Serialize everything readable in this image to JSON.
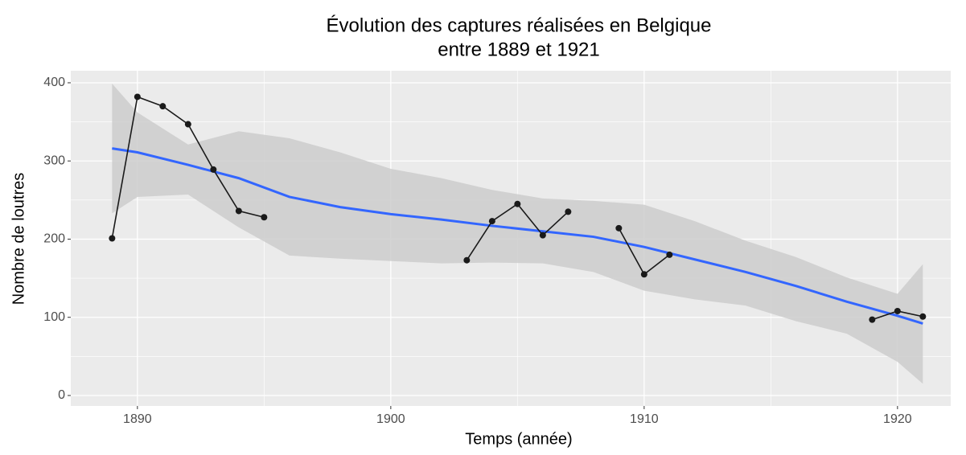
{
  "chart_data": {
    "type": "line",
    "title": [
      "Évolution des captures réalisées en Belgique",
      "entre 1889 et 1921"
    ],
    "xlabel": "Temps (année)",
    "ylabel": "Nombre de loutres",
    "x": [
      1889,
      1890,
      1891,
      1892,
      1893,
      1894,
      1895,
      1896,
      1897,
      1898,
      1899,
      1900,
      1901,
      1902,
      1903,
      1904,
      1905,
      1906,
      1907,
      1908,
      1909,
      1910,
      1911,
      1912,
      1913,
      1914,
      1915,
      1916,
      1917,
      1918,
      1919,
      1920,
      1921
    ],
    "values": [
      201,
      382,
      370,
      347,
      289,
      236,
      228,
      null,
      null,
      null,
      null,
      null,
      null,
      null,
      173,
      223,
      245,
      205,
      235,
      null,
      214,
      155,
      180,
      null,
      null,
      null,
      null,
      null,
      null,
      null,
      97,
      108,
      101
    ],
    "color": "#1a1a1a",
    "smooth": {
      "color": "#3366ff",
      "band_color": "#cccccc",
      "x": [
        1889,
        1890,
        1892,
        1894,
        1896,
        1898,
        1900,
        1902,
        1904,
        1906,
        1908,
        1910,
        1912,
        1914,
        1916,
        1918,
        1920,
        1921
      ],
      "values": [
        316,
        311,
        295,
        278,
        254,
        241,
        232,
        225,
        217,
        210,
        203,
        190,
        174,
        158,
        140,
        120,
        102,
        92
      ],
      "lower": [
        233,
        254,
        257,
        215,
        179,
        175,
        172,
        169,
        170,
        169,
        158,
        134,
        123,
        115,
        95,
        79,
        43,
        15
      ],
      "upper": [
        399,
        362,
        321,
        338,
        329,
        311,
        290,
        278,
        263,
        252,
        249,
        244,
        223,
        198,
        177,
        151,
        130,
        168
      ]
    },
    "xlim": [
      1887.37,
      1922.1
    ],
    "ylim": [
      -13.4,
      415.4
    ],
    "xticks": [
      1890,
      1900,
      1910,
      1920
    ],
    "yticks": [
      0,
      100,
      200,
      300,
      400
    ],
    "grid": true
  }
}
